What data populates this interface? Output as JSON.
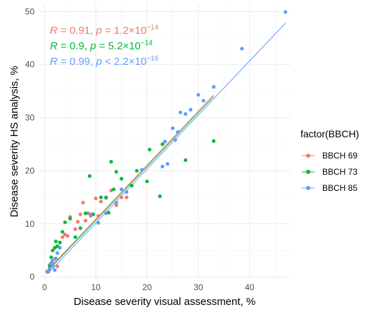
{
  "chart_data": {
    "type": "scatter",
    "xlabel": "Disease severity visual assessment, %",
    "ylabel": "Disease severity HS analysis, %",
    "xlim": [
      -1,
      48
    ],
    "ylim": [
      -0.5,
      51.5
    ],
    "x_ticks": [
      0,
      10,
      20,
      30,
      40
    ],
    "y_ticks": [
      0,
      10,
      20,
      30,
      40,
      50
    ],
    "grid": true,
    "legend": {
      "title": "factor(BBCH)",
      "position": "right"
    },
    "annotations": [
      {
        "series": "BBCH 69",
        "parts": [
          "R",
          " = 0.91, ",
          "p",
          " = 1.2×10",
          "−14"
        ],
        "color": "#F8766D"
      },
      {
        "series": "BBCH 73",
        "parts": [
          "R",
          " = 0.9, ",
          "p",
          " =  5.2×10",
          "−14"
        ],
        "color": "#00BA38"
      },
      {
        "series": "BBCH 85",
        "parts": [
          "R",
          " = 0.99, ",
          "p",
          " < 2.2×10",
          "−16"
        ],
        "color": "#619CFF"
      }
    ],
    "series": [
      {
        "name": "BBCH 69",
        "color": "#F8766D",
        "points": [
          [
            0.8,
            1.0
          ],
          [
            1.0,
            1.8
          ],
          [
            1.5,
            2.7
          ],
          [
            2.0,
            3.4
          ],
          [
            2.5,
            2.0
          ],
          [
            3.0,
            6.5
          ],
          [
            3.5,
            7.5
          ],
          [
            4.0,
            8.0
          ],
          [
            4.5,
            7.7
          ],
          [
            5.0,
            11.3
          ],
          [
            6.0,
            9.0
          ],
          [
            6.5,
            10.4
          ],
          [
            7.0,
            11.8
          ],
          [
            7.5,
            14.0
          ],
          [
            8.0,
            10.6
          ],
          [
            8.5,
            12.0
          ],
          [
            9.0,
            11.5
          ],
          [
            10.0,
            14.8
          ],
          [
            10.5,
            11.5
          ],
          [
            11.0,
            14.2
          ],
          [
            12.0,
            15.0
          ],
          [
            13.0,
            16.3
          ],
          [
            14.0,
            13.5
          ],
          [
            15.0,
            15.0
          ],
          [
            16.0,
            15.0
          ]
        ],
        "fit": [
          [
            0.5,
            1.2
          ],
          [
            33,
            34.3
          ]
        ]
      },
      {
        "name": "BBCH 73",
        "color": "#00BA38",
        "points": [
          [
            1.0,
            2.2
          ],
          [
            1.3,
            3.7
          ],
          [
            1.6,
            5.0
          ],
          [
            2.0,
            5.5
          ],
          [
            2.2,
            6.7
          ],
          [
            2.5,
            5.8
          ],
          [
            3.0,
            6.5
          ],
          [
            3.5,
            8.5
          ],
          [
            4.0,
            10.3
          ],
          [
            5.0,
            11.0
          ],
          [
            6.0,
            7.5
          ],
          [
            7.0,
            9.2
          ],
          [
            8.0,
            12.0
          ],
          [
            8.8,
            19.0
          ],
          [
            9.5,
            11.8
          ],
          [
            11.0,
            15.0
          ],
          [
            12.0,
            14.9
          ],
          [
            12.5,
            12.1
          ],
          [
            13.0,
            21.7
          ],
          [
            13.5,
            16.5
          ],
          [
            14.0,
            19.8
          ],
          [
            15.0,
            18.5
          ],
          [
            17.0,
            17.2
          ],
          [
            18.0,
            20.0
          ],
          [
            20.0,
            18.0
          ],
          [
            20.5,
            24.0
          ],
          [
            22.5,
            15.2
          ],
          [
            23.0,
            25.0
          ],
          [
            27.5,
            22.0
          ],
          [
            33.0,
            25.6
          ]
        ],
        "fit": [
          [
            0.5,
            1.0
          ],
          [
            33,
            34.0
          ]
        ]
      },
      {
        "name": "BBCH 85",
        "color": "#619CFF",
        "points": [
          [
            0.5,
            1.0
          ],
          [
            1.0,
            1.5
          ],
          [
            1.2,
            2.5
          ],
          [
            1.5,
            3.0
          ],
          [
            1.7,
            2.0
          ],
          [
            2.0,
            1.3
          ],
          [
            2.2,
            3.5
          ],
          [
            2.5,
            4.5
          ],
          [
            3.0,
            5.5
          ],
          [
            9.0,
            11.8
          ],
          [
            10.5,
            10.2
          ],
          [
            12.0,
            12.0
          ],
          [
            14.0,
            14.0
          ],
          [
            15.0,
            16.5
          ],
          [
            16.0,
            16.0
          ],
          [
            19.0,
            20.2
          ],
          [
            23.0,
            20.8
          ],
          [
            23.5,
            25.5
          ],
          [
            24.0,
            21.3
          ],
          [
            25.0,
            28.0
          ],
          [
            25.5,
            25.8
          ],
          [
            26.0,
            27.3
          ],
          [
            26.5,
            31.0
          ],
          [
            27.5,
            30.7
          ],
          [
            28.5,
            31.5
          ],
          [
            30.0,
            34.3
          ],
          [
            31.0,
            33.2
          ],
          [
            33.0,
            35.8
          ],
          [
            38.5,
            43.0
          ],
          [
            47.0,
            49.9
          ]
        ],
        "fit": [
          [
            0.5,
            0.5
          ],
          [
            47,
            47.8
          ]
        ]
      }
    ]
  }
}
